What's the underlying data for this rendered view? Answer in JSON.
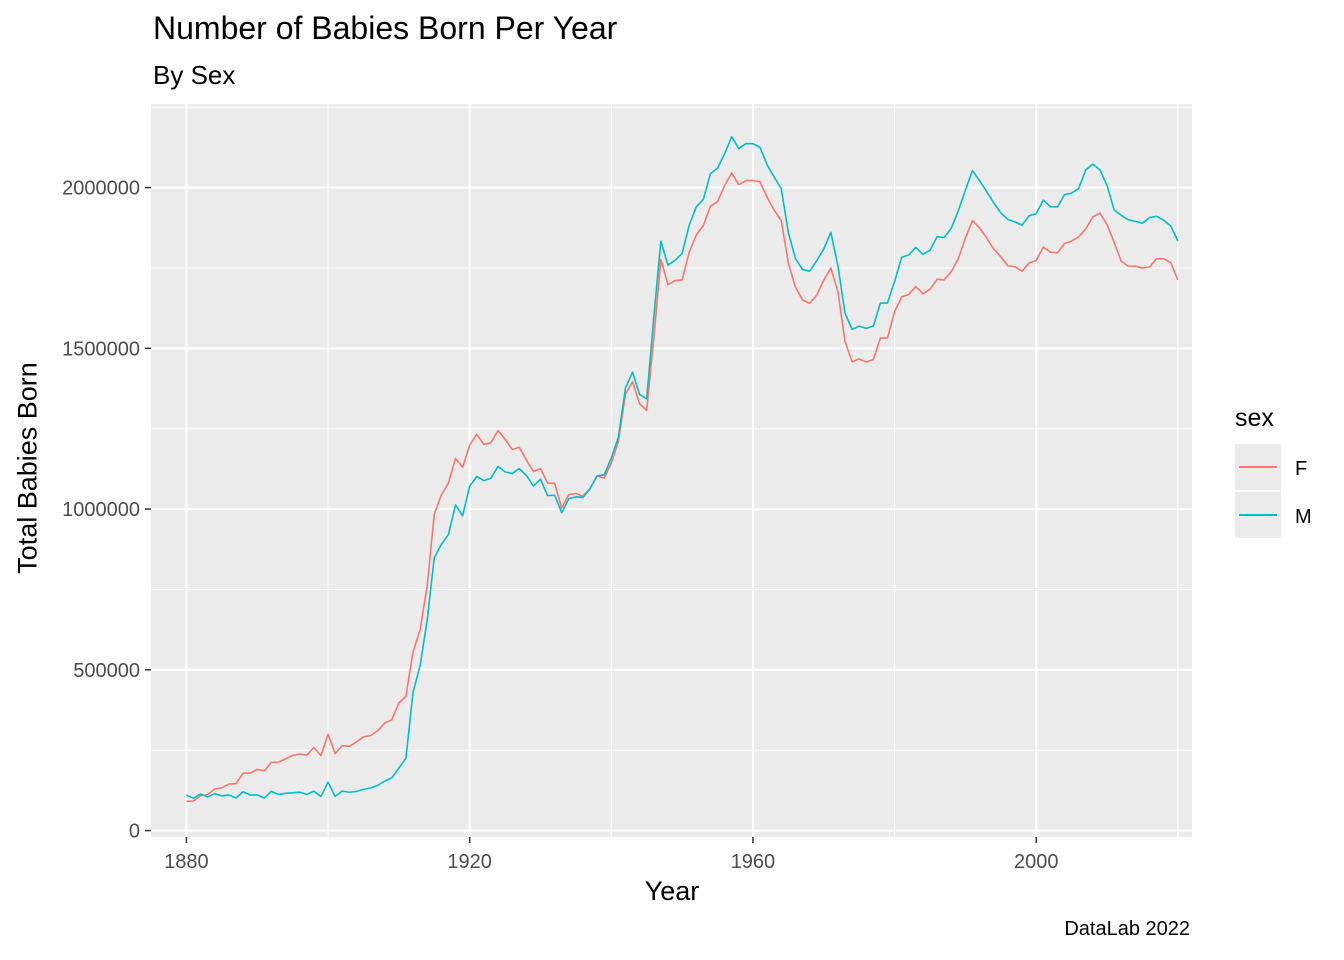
{
  "chart_data": {
    "type": "line",
    "title": "Number of Babies Born Per Year",
    "subtitle": "By Sex",
    "xlabel": "Year",
    "ylabel": "Total Babies Born",
    "caption": "DataLab 2022",
    "legend_title": "sex",
    "legend_position": "right",
    "grid": true,
    "xlim": [
      1875,
      2022
    ],
    "ylim": [
      -20000,
      2260000
    ],
    "x_ticks": [
      1880,
      1920,
      1960,
      2000
    ],
    "y_ticks": [
      0,
      500000,
      1000000,
      1500000,
      2000000
    ],
    "x_start": 1880,
    "series": [
      {
        "name": "F",
        "color": "#F8766D",
        "values": [
          90993,
          91954,
          107851,
          112322,
          129022,
          133056,
          144535,
          145982,
          178627,
          178366,
          190377,
          185482,
          212346,
          212906,
          222922,
          233630,
          237920,
          234202,
          258770,
          233022,
          299822,
          239351,
          264079,
          261976,
          275375,
          291641,
          295301,
          310460,
          334273,
          344872,
          396416,
          418180,
          555920,
          624316,
          761375,
          983819,
          1044249,
          1081194,
          1157585,
          1130211,
          1198214,
          1232845,
          1200796,
          1206239,
          1244490,
          1217239,
          1185078,
          1192206,
          1152836,
          1116563,
          1125821,
          1081116,
          1080023,
          1002956,
          1044830,
          1048386,
          1040069,
          1064467,
          1103445,
          1096338,
          1143349,
          1210656,
          1357651,
          1395950,
          1327236,
          1306867,
          1532318,
          1776152,
          1698074,
          1710916,
          1712857,
          1798846,
          1852845,
          1882000,
          1942522,
          1956223,
          2005985,
          2045141,
          2008838,
          2021973,
          2022105,
          2018195,
          1969928,
          1929614,
          1897034,
          1764857,
          1690373,
          1650799,
          1640096,
          1664954,
          1712093,
          1750012,
          1676226,
          1521398,
          1458149,
          1467015,
          1457332,
          1465418,
          1531834,
          1532245,
          1613359,
          1660189,
          1667546,
          1692159,
          1670131,
          1683226,
          1714834,
          1712842,
          1738452,
          1778553,
          1843308,
          1897339,
          1874364,
          1843524,
          1808602,
          1784845,
          1756542,
          1753839,
          1739891,
          1765709,
          1773213,
          1814931,
          1799117,
          1796812,
          1826179,
          1833993,
          1846651,
          1871842,
          1908912,
          1921017,
          1885006,
          1829837,
          1770894,
          1755896,
          1755431,
          1750021,
          1753016,
          1779066,
          1778795,
          1766589,
          1712548
        ]
      },
      {
        "name": "M",
        "color": "#00BFC4",
        "values": [
          110491,
          100743,
          113686,
          104627,
          114442,
          107799,
          110784,
          101415,
          120851,
          110580,
          111025,
          101196,
          122035,
          112319,
          115774,
          117398,
          119567,
          112322,
          122537,
          106206,
          150501,
          106474,
          122662,
          119240,
          121603,
          128183,
          132350,
          140232,
          154108,
          163913,
          194246,
          225681,
          429949,
          512542,
          654746,
          848601,
          890121,
          920887,
          1012865,
          979007,
          1071208,
          1101411,
          1088418,
          1096215,
          1132639,
          1115767,
          1110468,
          1125954,
          1104937,
          1071620,
          1093019,
          1041913,
          1043049,
          988928,
          1031991,
          1038062,
          1035967,
          1063279,
          1103566,
          1106463,
          1158734,
          1223412,
          1376796,
          1425634,
          1356524,
          1342924,
          1597426,
          1833145,
          1758591,
          1773717,
          1795107,
          1882796,
          1940311,
          1963434,
          2043314,
          2060125,
          2105014,
          2158047,
          2121290,
          2136567,
          2136547,
          2125124,
          2070745,
          2032938,
          1996869,
          1859919,
          1780007,
          1745009,
          1739966,
          1772138,
          1808934,
          1860985,
          1756911,
          1609516,
          1559094,
          1568941,
          1562082,
          1568974,
          1640908,
          1640842,
          1707542,
          1782919,
          1790536,
          1813816,
          1792498,
          1805101,
          1847124,
          1844669,
          1873237,
          1927811,
          1991564,
          2052853,
          2021400,
          1987887,
          1952874,
          1921131,
          1901111,
          1893064,
          1883123,
          1912233,
          1918855,
          1960993,
          1940618,
          1939801,
          1978103,
          1982810,
          1997108,
          2055105,
          2073004,
          2055147,
          2006919,
          1931225,
          1913706,
          1899839,
          1894893,
          1889082,
          1906656,
          1910718,
          1898723,
          1880218,
          1833839
        ]
      }
    ]
  }
}
